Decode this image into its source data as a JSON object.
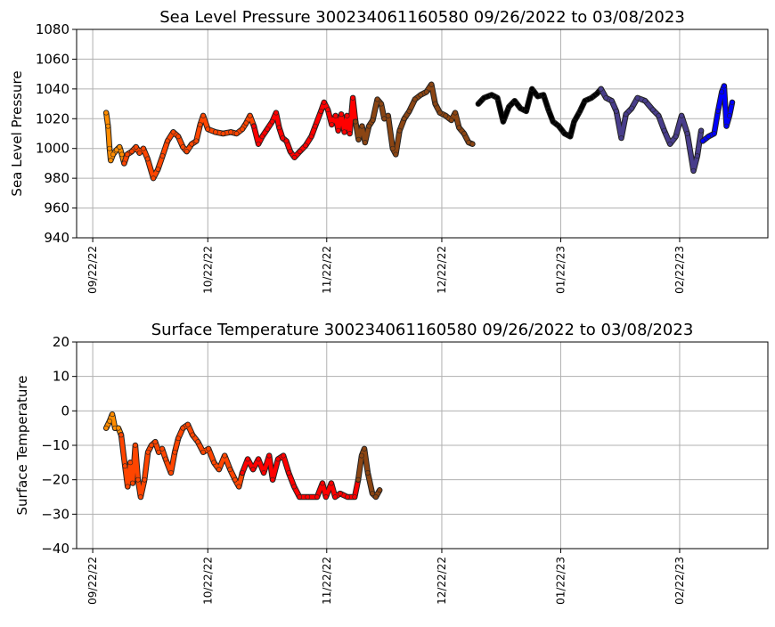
{
  "chart_data": [
    {
      "type": "scatter",
      "title": "Sea Level Pressure 300234061160580  09/26/2022 to 03/08/2023",
      "xlabel": "",
      "ylabel": "Sea Level Pressure",
      "x_unit": "days since 09/22/22",
      "xlim": [
        -4.2,
        176
      ],
      "ylim": [
        940,
        1080
      ],
      "yticks": [
        940,
        960,
        980,
        1000,
        1020,
        1040,
        1060,
        1080
      ],
      "xticks": [
        {
          "day": 0,
          "label": "09/22/22"
        },
        {
          "day": 30,
          "label": "10/22/22"
        },
        {
          "day": 61,
          "label": "11/22/22"
        },
        {
          "day": 91,
          "label": "12/22/22"
        },
        {
          "day": 122,
          "label": "01/22/23"
        },
        {
          "day": 153,
          "label": "02/22/23"
        }
      ],
      "grid": true,
      "series": [
        {
          "name": "segment-1",
          "color": "#ff8c00",
          "points": [
            [
              3.5,
              1024
            ],
            [
              4.0,
              1015
            ],
            [
              4.4,
              1000
            ],
            [
              4.7,
              992
            ],
            [
              5.3,
              996
            ],
            [
              6.2,
              999
            ],
            [
              7.0,
              1001
            ],
            [
              7.6,
              996
            ],
            [
              8.2,
              990
            ]
          ]
        },
        {
          "name": "segment-2",
          "color": "#ff4500",
          "points": [
            [
              8.2,
              990
            ],
            [
              9.0,
              996
            ],
            [
              10.2,
              998
            ],
            [
              11.3,
              1001
            ],
            [
              12.2,
              997
            ],
            [
              13.2,
              1000
            ],
            [
              14.3,
              993
            ],
            [
              15.8,
              980
            ],
            [
              17.0,
              986
            ],
            [
              18.2,
              995
            ],
            [
              19.5,
              1005
            ],
            [
              21.0,
              1011
            ],
            [
              22.3,
              1008
            ],
            [
              23.5,
              1001
            ],
            [
              24.5,
              998
            ],
            [
              25.8,
              1003
            ],
            [
              27.0,
              1005
            ],
            [
              28.0,
              1016
            ],
            [
              28.8,
              1022
            ],
            [
              30.0,
              1013
            ],
            [
              32.0,
              1011
            ],
            [
              34.0,
              1010
            ],
            [
              36.0,
              1011
            ],
            [
              37.5,
              1010
            ],
            [
              39.0,
              1013
            ],
            [
              40.0,
              1017
            ],
            [
              41.0,
              1022
            ],
            [
              42.0,
              1015
            ]
          ]
        },
        {
          "name": "segment-3",
          "color": "#ff0000",
          "points": [
            [
              42.0,
              1015
            ],
            [
              43.2,
              1003
            ],
            [
              44.2,
              1008
            ],
            [
              45.5,
              1013
            ],
            [
              46.8,
              1018
            ],
            [
              47.8,
              1024
            ],
            [
              48.6,
              1014
            ],
            [
              49.5,
              1007
            ],
            [
              50.5,
              1005
            ],
            [
              51.5,
              998
            ],
            [
              52.6,
              994
            ],
            [
              54.0,
              998
            ],
            [
              55.5,
              1002
            ],
            [
              57.0,
              1008
            ],
            [
              58.0,
              1015
            ],
            [
              59.5,
              1025
            ],
            [
              60.3,
              1031
            ],
            [
              61.3,
              1026
            ],
            [
              62.3,
              1016
            ],
            [
              63.3,
              1022
            ],
            [
              64.0,
              1012
            ],
            [
              64.8,
              1023
            ],
            [
              65.6,
              1011
            ],
            [
              66.3,
              1022
            ],
            [
              67.0,
              1010
            ],
            [
              67.8,
              1034
            ],
            [
              68.5,
              1018
            ]
          ]
        },
        {
          "name": "segment-4",
          "color": "#8b4513",
          "points": [
            [
              68.5,
              1018
            ],
            [
              69.3,
              1006
            ],
            [
              70.2,
              1015
            ],
            [
              71.0,
              1004
            ],
            [
              72.0,
              1015
            ],
            [
              73.0,
              1019
            ],
            [
              74.2,
              1033
            ],
            [
              75.2,
              1030
            ],
            [
              76.0,
              1020
            ],
            [
              77.0,
              1022
            ],
            [
              78.2,
              1000
            ],
            [
              79.0,
              996
            ],
            [
              80.0,
              1012
            ],
            [
              81.2,
              1020
            ],
            [
              82.5,
              1025
            ],
            [
              84.0,
              1033
            ],
            [
              85.5,
              1036
            ],
            [
              87.0,
              1038
            ],
            [
              88.3,
              1043
            ],
            [
              89.3,
              1030
            ],
            [
              90.5,
              1024
            ],
            [
              92.0,
              1022
            ],
            [
              93.5,
              1019
            ],
            [
              94.5,
              1024
            ],
            [
              95.5,
              1014
            ],
            [
              96.8,
              1010
            ],
            [
              98.0,
              1004
            ],
            [
              99.0,
              1003
            ]
          ]
        },
        {
          "name": "segment-5",
          "color": "#000000",
          "points": [
            [
              100.5,
              1030
            ],
            [
              102,
              1034
            ],
            [
              104,
              1036
            ],
            [
              105.5,
              1034
            ],
            [
              107,
              1018
            ],
            [
              108.5,
              1028
            ],
            [
              110,
              1032
            ],
            [
              111.5,
              1027
            ],
            [
              113,
              1025
            ],
            [
              114.5,
              1040
            ],
            [
              116,
              1035
            ],
            [
              117.5,
              1036
            ],
            [
              118.8,
              1026
            ],
            [
              120,
              1018
            ],
            [
              121.5,
              1015
            ],
            [
              123,
              1010
            ],
            [
              124.5,
              1008
            ],
            [
              125.5,
              1018
            ],
            [
              127,
              1025
            ],
            [
              128.3,
              1032
            ],
            [
              130,
              1034
            ],
            [
              131.5,
              1037
            ],
            [
              132.5,
              1040
            ]
          ]
        },
        {
          "name": "segment-6",
          "color": "#483d8b",
          "points": [
            [
              132.5,
              1040
            ],
            [
              133.8,
              1034
            ],
            [
              135.3,
              1032
            ],
            [
              136.5,
              1025
            ],
            [
              137.8,
              1007
            ],
            [
              139,
              1023
            ],
            [
              140.5,
              1027
            ],
            [
              142,
              1034
            ],
            [
              144,
              1032
            ],
            [
              146,
              1026
            ],
            [
              147.5,
              1022
            ],
            [
              149,
              1012
            ],
            [
              150.5,
              1003
            ],
            [
              152,
              1008
            ],
            [
              153.5,
              1022
            ],
            [
              155,
              1010
            ],
            [
              156.6,
              985
            ],
            [
              157.6,
              995
            ],
            [
              158.6,
              1012
            ]
          ]
        },
        {
          "name": "segment-7",
          "color": "#0000ff",
          "points": [
            [
              159.0,
              1005
            ],
            [
              160.5,
              1008
            ],
            [
              162,
              1010
            ],
            [
              163,
              1025
            ],
            [
              164,
              1038
            ],
            [
              164.6,
              1042
            ],
            [
              165.2,
              1015
            ],
            [
              166,
              1022
            ],
            [
              166.7,
              1031
            ]
          ]
        }
      ]
    },
    {
      "type": "scatter",
      "title": "Surface Temperature 300234061160580  09/26/2022 to 03/08/2023",
      "xlabel": "",
      "ylabel": "Surface Temperature",
      "x_unit": "days since 09/22/22",
      "xlim": [
        -4.2,
        176
      ],
      "ylim": [
        -40,
        20
      ],
      "yticks": [
        -40,
        -30,
        -20,
        -10,
        0,
        10,
        20
      ],
      "xticks": [
        {
          "day": 0,
          "label": "09/22/22"
        },
        {
          "day": 30,
          "label": "10/22/22"
        },
        {
          "day": 61,
          "label": "11/22/22"
        },
        {
          "day": 91,
          "label": "12/22/22"
        },
        {
          "day": 122,
          "label": "01/22/23"
        },
        {
          "day": 153,
          "label": "02/22/23"
        }
      ],
      "grid": true,
      "series": [
        {
          "name": "segment-1",
          "color": "#ff8c00",
          "points": [
            [
              3.5,
              -5
            ],
            [
              4.4,
              -3
            ],
            [
              5.1,
              -1
            ],
            [
              5.8,
              -5
            ],
            [
              6.7,
              -5
            ],
            [
              7.4,
              -7
            ]
          ]
        },
        {
          "name": "segment-2",
          "color": "#ff4500",
          "points": [
            [
              7.4,
              -7
            ],
            [
              8.4,
              -16
            ],
            [
              9.1,
              -22
            ],
            [
              9.8,
              -15
            ],
            [
              10.4,
              -21
            ],
            [
              11.1,
              -10
            ],
            [
              11.8,
              -20
            ],
            [
              12.5,
              -25
            ],
            [
              13.5,
              -20
            ],
            [
              14.4,
              -12
            ],
            [
              15.3,
              -10
            ],
            [
              16.3,
              -9
            ],
            [
              17.2,
              -12
            ],
            [
              18.1,
              -11
            ],
            [
              19.0,
              -14
            ],
            [
              20.4,
              -18
            ],
            [
              21.4,
              -12
            ],
            [
              22.3,
              -8
            ],
            [
              23.5,
              -5
            ],
            [
              24.8,
              -4
            ],
            [
              26.0,
              -7
            ],
            [
              27.4,
              -9
            ],
            [
              28.8,
              -12
            ],
            [
              30.2,
              -11
            ],
            [
              31.6,
              -15
            ],
            [
              32.9,
              -17
            ],
            [
              34.4,
              -13
            ],
            [
              35.8,
              -17
            ],
            [
              37.1,
              -20
            ],
            [
              38.1,
              -22
            ],
            [
              39.0,
              -18
            ]
          ]
        },
        {
          "name": "segment-3",
          "color": "#ff0000",
          "points": [
            [
              39.0,
              -18
            ],
            [
              40.4,
              -14
            ],
            [
              41.8,
              -17
            ],
            [
              43.2,
              -14
            ],
            [
              44.6,
              -18
            ],
            [
              46.0,
              -13
            ],
            [
              46.9,
              -20
            ],
            [
              48.3,
              -14
            ],
            [
              49.7,
              -13
            ],
            [
              51.1,
              -18
            ],
            [
              52.5,
              -22
            ],
            [
              53.9,
              -25
            ],
            [
              56.0,
              -25
            ],
            [
              58.5,
              -25
            ],
            [
              59.9,
              -21
            ],
            [
              60.8,
              -25
            ],
            [
              62.2,
              -21
            ],
            [
              63.2,
              -25
            ],
            [
              64.5,
              -24
            ],
            [
              66.4,
              -25
            ],
            [
              68.3,
              -25
            ],
            [
              69.2,
              -20
            ]
          ]
        },
        {
          "name": "segment-4",
          "color": "#8b4513",
          "points": [
            [
              69.2,
              -20
            ],
            [
              70.1,
              -13
            ],
            [
              70.8,
              -11
            ],
            [
              71.7,
              -18
            ],
            [
              72.9,
              -24
            ],
            [
              73.8,
              -25
            ],
            [
              74.8,
              -23
            ]
          ]
        }
      ]
    }
  ]
}
